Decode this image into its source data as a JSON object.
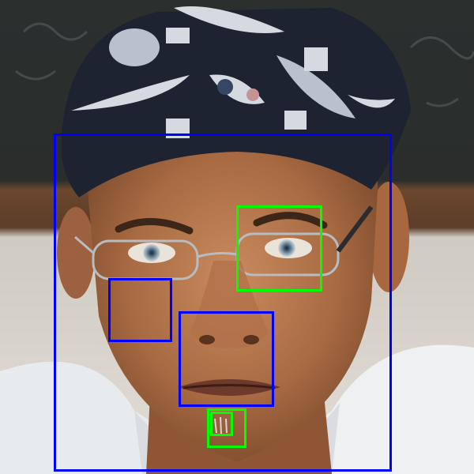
{
  "photo": {
    "subject": "face-portrait",
    "bandana_colors": [
      "#1d2330",
      "#e9eef4",
      "#c9d3de"
    ],
    "background_colors": [
      "#2a2d2c",
      "#5b3d2a",
      "#d9d4cd"
    ]
  },
  "box_colors": {
    "blue": "#0000ff",
    "green": "#00ff00"
  },
  "boxes": [
    {
      "color": "blue",
      "line_width": 3
    },
    {
      "color": "blue",
      "line_width": 3
    },
    {
      "color": "blue",
      "line_width": 3
    },
    {
      "color": "green",
      "line_width": 3
    },
    {
      "color": "green",
      "line_width": 3
    },
    {
      "color": "green",
      "line_width": 3
    }
  ]
}
